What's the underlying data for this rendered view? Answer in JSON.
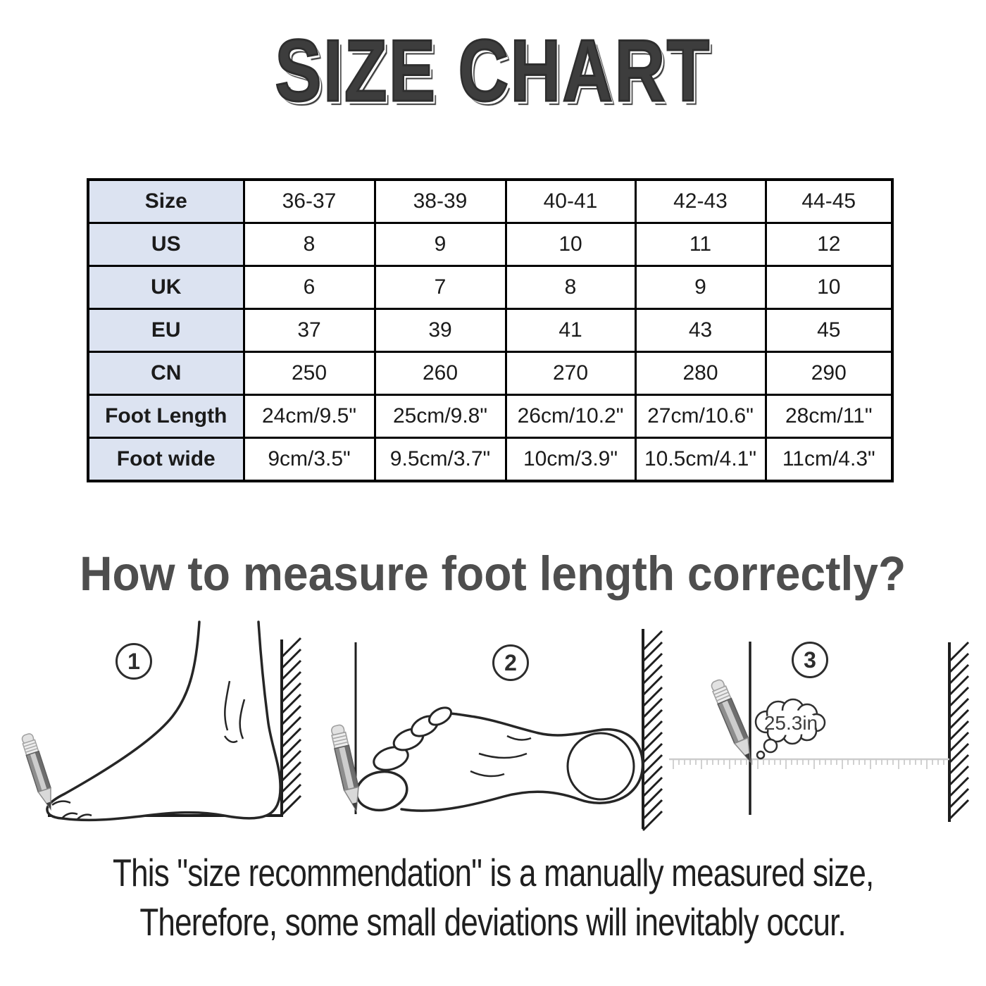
{
  "title": "SIZE CHART",
  "colors": {
    "table_header_bg": "#dce3f1",
    "table_border": "#000000",
    "title_gray": "#3d3d3d",
    "heading_gray": "#4e4e4e"
  },
  "chart_data": {
    "type": "table",
    "title": "SIZE CHART",
    "row_headers": [
      "Size",
      "US",
      "UK",
      "EU",
      "CN",
      "Foot Length",
      "Foot wide"
    ],
    "rows": [
      [
        "36-37",
        "38-39",
        "40-41",
        "42-43",
        "44-45"
      ],
      [
        "8",
        "9",
        "10",
        "11",
        "12"
      ],
      [
        "6",
        "7",
        "8",
        "9",
        "10"
      ],
      [
        "37",
        "39",
        "41",
        "43",
        "45"
      ],
      [
        "250",
        "260",
        "270",
        "280",
        "290"
      ],
      [
        "24cm/9.5\"",
        "25cm/9.8\"",
        "26cm/10.2\"",
        "27cm/10.6\"",
        "28cm/11\""
      ],
      [
        "9cm/3.5\"",
        "9.5cm/3.7\"",
        "10cm/3.9\"",
        "10.5cm/4.1\"",
        "11cm/4.3\""
      ]
    ]
  },
  "how_to": {
    "heading": "How to measure foot length correctly?",
    "steps": [
      {
        "number": "1"
      },
      {
        "number": "2"
      },
      {
        "number": "3"
      }
    ],
    "thought_label": "25.3in"
  },
  "footer": {
    "line1": "This \"size recommendation\" is a manually measured size,",
    "line2": "Therefore, some small deviations will inevitably occur."
  }
}
